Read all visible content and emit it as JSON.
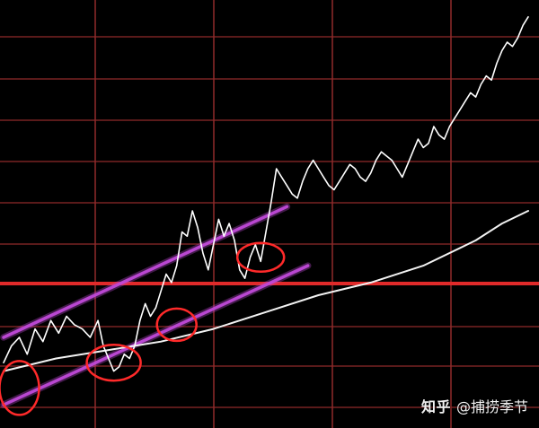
{
  "watermark": {
    "brand": "知乎",
    "handle": "@捕捞季节"
  },
  "colors": {
    "background": "#000000",
    "grid": "#8f2a2a",
    "grid_emphasis": "#e02a2a",
    "price_line": "#ffffff",
    "moving_average_line": "#f2f2f2",
    "channel_lines": "#c04ad8",
    "annotation_circles": "#ff2a2a"
  },
  "chart_data": {
    "type": "line",
    "title": "",
    "xlabel": "",
    "ylabel": "",
    "grid": true,
    "xlim": [
      0,
      100
    ],
    "ylim": [
      0,
      100
    ],
    "series": [
      {
        "x": [
          0,
          1.5,
          3,
          4.5,
          6,
          7.5,
          9,
          10.5,
          12,
          13.5,
          15,
          16.5,
          18,
          19,
          20,
          21,
          22,
          23,
          24,
          25,
          26,
          27,
          28,
          29,
          30,
          31,
          32,
          33,
          34,
          35,
          36,
          37,
          38,
          39,
          40,
          41,
          42,
          43,
          44,
          45,
          46,
          47,
          48,
          49,
          50,
          51,
          52,
          53,
          54,
          55,
          56,
          57,
          58,
          59,
          60,
          61,
          62,
          63,
          64,
          65,
          66,
          67,
          68,
          69,
          70,
          71,
          72,
          73,
          74,
          75,
          76,
          77,
          78,
          79,
          80,
          81,
          82,
          83,
          84,
          85,
          86,
          87,
          88,
          89,
          90,
          91,
          92,
          93,
          94,
          95,
          96,
          97,
          98,
          99,
          100
        ],
        "values": [
          14,
          18,
          20,
          16,
          22,
          19,
          24,
          21,
          25,
          23,
          22,
          20,
          24,
          18,
          15,
          12,
          13,
          16,
          15,
          18,
          24,
          28,
          25,
          27,
          31,
          35,
          33,
          37,
          45,
          44,
          50,
          46,
          40,
          36,
          42,
          48,
          44,
          47,
          43,
          36,
          34,
          39,
          42,
          38,
          45,
          52,
          60,
          58,
          56,
          54,
          53,
          57,
          60,
          62,
          60,
          58,
          56,
          55,
          57,
          59,
          61,
          60,
          58,
          57,
          59,
          62,
          64,
          63,
          62,
          60,
          58,
          61,
          64,
          67,
          65,
          66,
          70,
          68,
          67,
          70,
          72,
          74,
          76,
          78,
          77,
          80,
          82,
          81,
          85,
          88,
          90,
          89,
          91,
          94,
          96
        ]
      },
      {
        "x": [
          0,
          10,
          20,
          30,
          40,
          50,
          60,
          70,
          80,
          90,
          95,
          100
        ],
        "values": [
          12,
          15,
          17,
          19,
          22,
          26,
          30,
          33,
          37,
          43,
          47,
          50
        ]
      },
      {
        "x": [
          0,
          54
        ],
        "values": [
          20,
          51
        ]
      },
      {
        "x": [
          0,
          58
        ],
        "values": [
          4,
          37
        ]
      }
    ],
    "annotations": [
      {
        "x": 3,
        "y": 8
      },
      {
        "x": 21,
        "y": 14
      },
      {
        "x": 33,
        "y": 23
      },
      {
        "x": 49,
        "y": 39
      }
    ]
  }
}
